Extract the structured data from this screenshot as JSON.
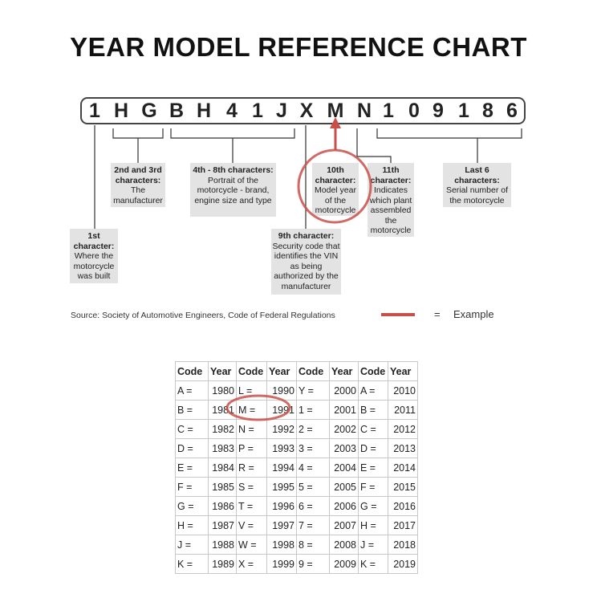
{
  "title": "YEAR MODEL REFERENCE CHART",
  "vin": [
    "1",
    "H",
    "G",
    "B",
    "H",
    "4",
    "1",
    "J",
    "X",
    "M",
    "N",
    "1",
    "0",
    "9",
    "1",
    "8",
    "6"
  ],
  "labels": {
    "first": {
      "head": "1st character:",
      "body": "Where the motorcycle was built"
    },
    "second_third": {
      "head": "2nd and 3rd characters:",
      "body": "The manufacturer"
    },
    "fourth_eighth": {
      "head": "4th - 8th characters:",
      "body": "Portrait of the motorcycle - brand, engine size and type"
    },
    "ninth": {
      "head": "9th character:",
      "body": "Security code that identifies the VIN as being authorized by the manufacturer"
    },
    "tenth": {
      "head": "10th character:",
      "body": "Model year of the motorcycle"
    },
    "eleventh": {
      "head": "11th character:",
      "body": "Indicates which plant assembled the motorcycle"
    },
    "last_six": {
      "head": "Last 6 characters:",
      "body": "Serial number of the motorcycle"
    }
  },
  "source": "Source:  Society of Automotive Engineers, Code of Federal Regulations",
  "legend": {
    "equals": "=",
    "label": "Example",
    "color": "#c9504a"
  },
  "table": {
    "headers": [
      "Code",
      "Year",
      "Code",
      "Year",
      "Code",
      "Year",
      "Code",
      "Year"
    ],
    "rows": [
      [
        "A =",
        "1980",
        "L =",
        "1990",
        "Y =",
        "2000",
        "A =",
        "2010"
      ],
      [
        "B =",
        "1981",
        "M =",
        "1991",
        "1 =",
        "2001",
        "B =",
        "2011"
      ],
      [
        "C =",
        "1982",
        "N =",
        "1992",
        "2 =",
        "2002",
        "C =",
        "2012"
      ],
      [
        "D =",
        "1983",
        "P =",
        "1993",
        "3 =",
        "2003",
        "D =",
        "2013"
      ],
      [
        "E =",
        "1984",
        "R =",
        "1994",
        "4 =",
        "2004",
        "E =",
        "2014"
      ],
      [
        "F =",
        "1985",
        "S =",
        "1995",
        "5 =",
        "2005",
        "F =",
        "2015"
      ],
      [
        "G =",
        "1986",
        "T =",
        "1996",
        "6 =",
        "2006",
        "G =",
        "2016"
      ],
      [
        "H =",
        "1987",
        "V =",
        "1997",
        "7 =",
        "2007",
        "H =",
        "2017"
      ],
      [
        "J =",
        "1988",
        "W =",
        "1998",
        "8 =",
        "2008",
        "J =",
        "2018"
      ],
      [
        "K =",
        "1989",
        "X =",
        "1999",
        "9 =",
        "2009",
        "K =",
        "2019"
      ]
    ]
  }
}
